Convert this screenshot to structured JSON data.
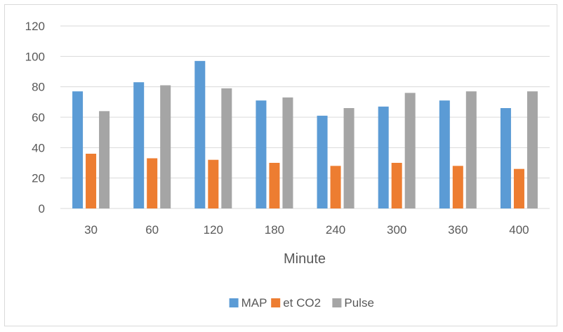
{
  "chart_data": {
    "type": "bar",
    "title": "",
    "xlabel": "Minute",
    "ylabel": "",
    "categories": [
      "30",
      "60",
      "120",
      "180",
      "240",
      "300",
      "360",
      "400"
    ],
    "series": [
      {
        "name": "MAP",
        "color": "#5b9bd5",
        "values": [
          77,
          83,
          97,
          71,
          61,
          67,
          71,
          66
        ]
      },
      {
        "name": "et CO2",
        "color": "#ed7d31",
        "values": [
          36,
          33,
          32,
          30,
          28,
          30,
          28,
          26
        ]
      },
      {
        "name": "Pulse",
        "color": "#a5a5a5",
        "values": [
          64,
          81,
          79,
          73,
          66,
          76,
          77,
          77
        ]
      }
    ],
    "ylim": [
      0,
      120
    ],
    "yticks": [
      "0",
      "20",
      "40",
      "60",
      "80",
      "100",
      "120"
    ],
    "grid": true,
    "legend_position": "bottom",
    "gridline_color": "#d9d9d9"
  }
}
